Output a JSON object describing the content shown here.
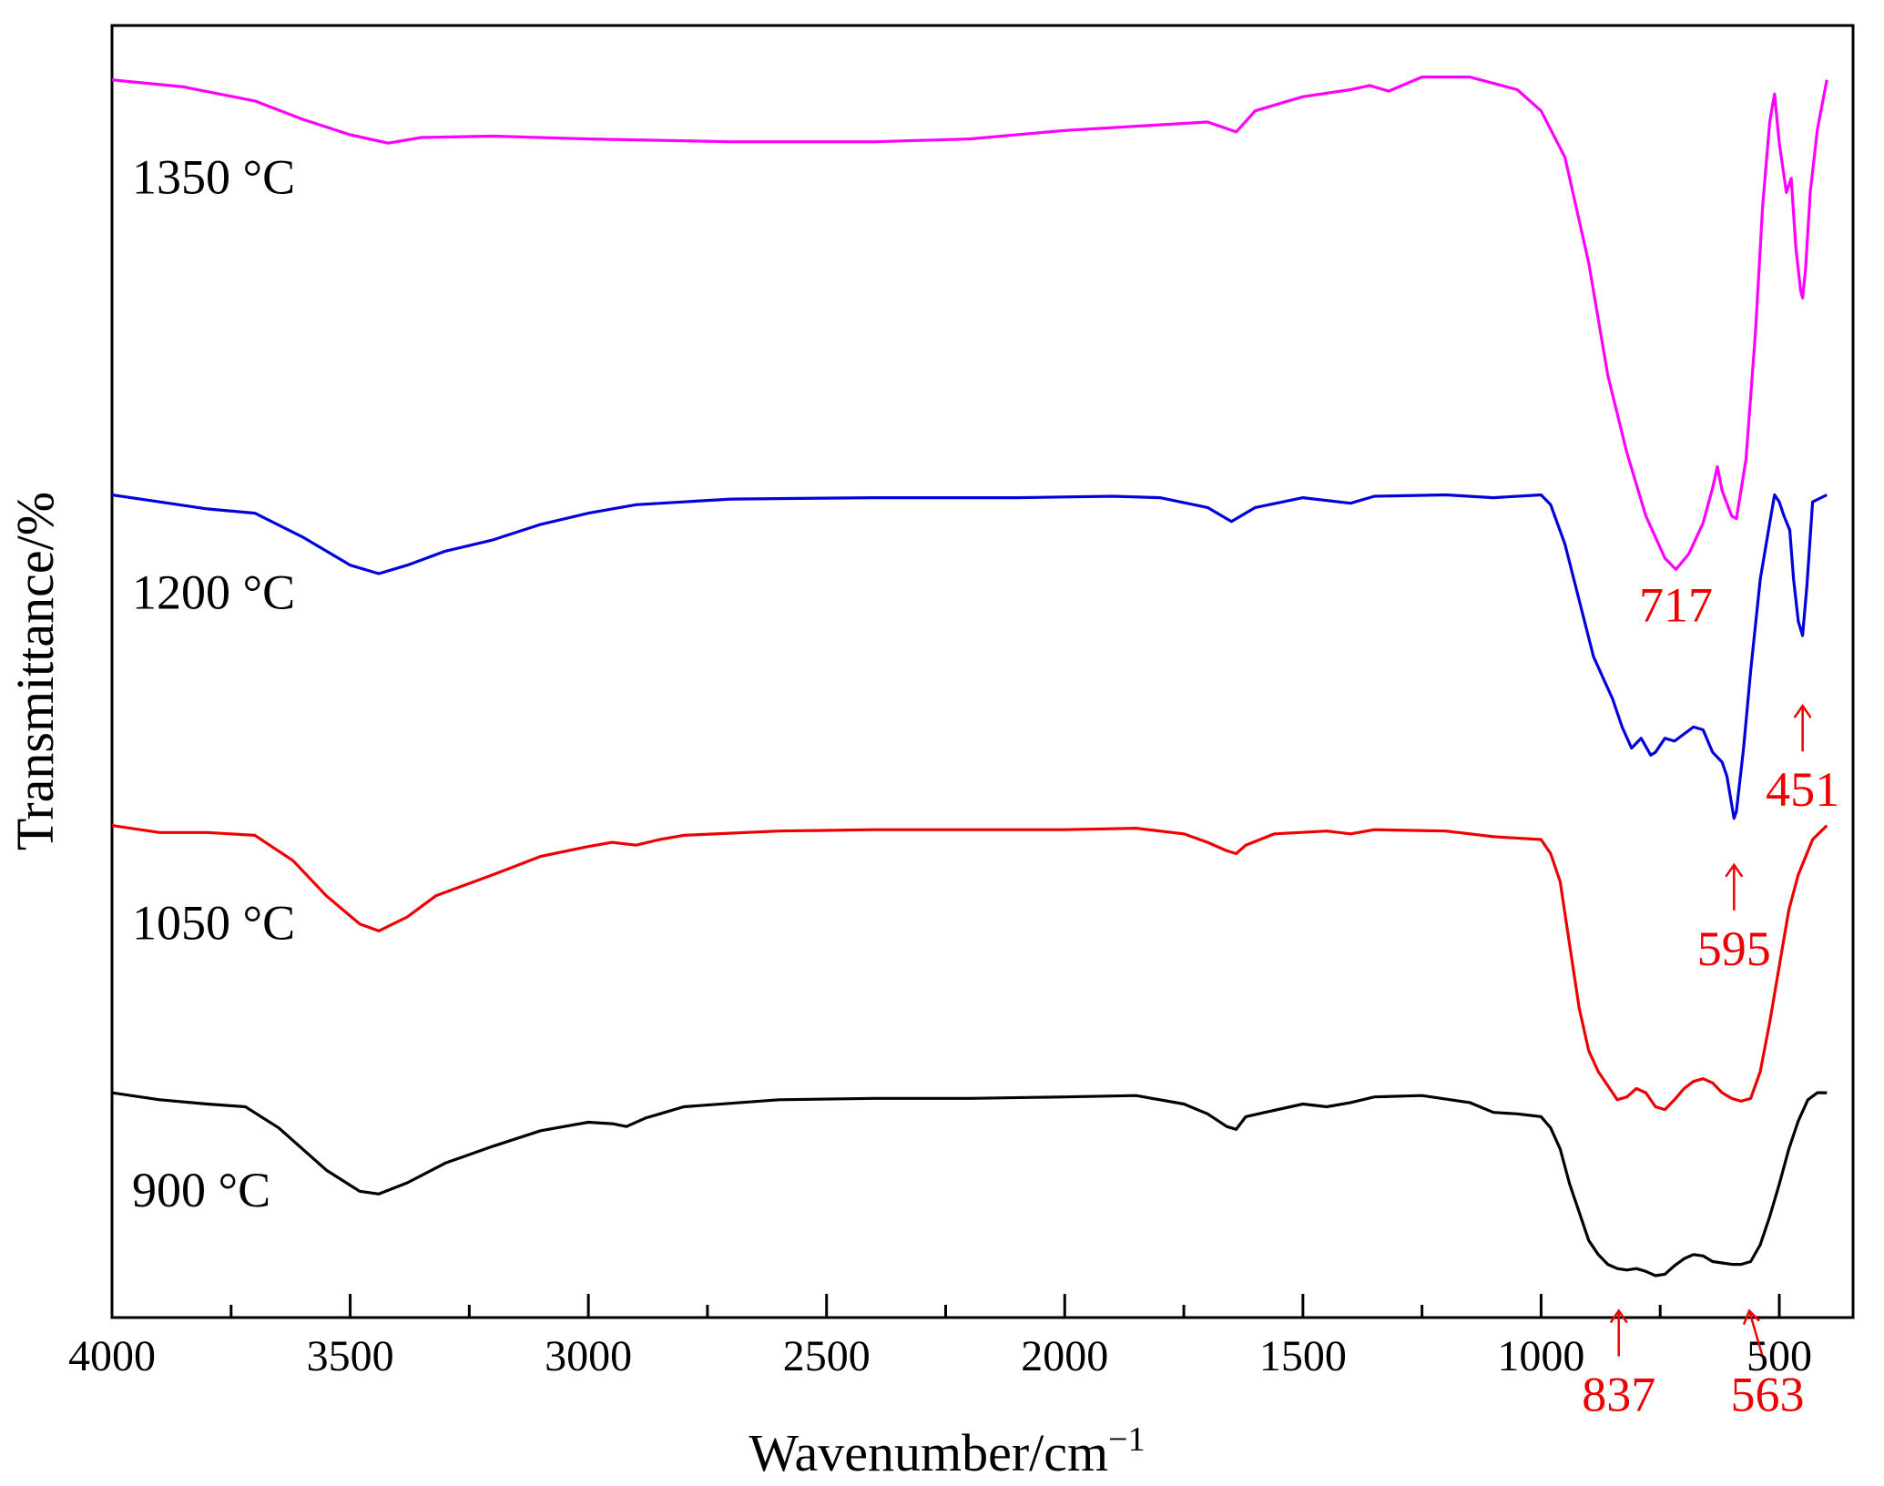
{
  "chart_data": {
    "type": "line",
    "title": "",
    "xlabel": "Wavenumber/cm",
    "xlabel_superscript": "−1",
    "ylabel": "Transmittance/%",
    "xlim": [
      4000,
      200
    ],
    "x_ticks": [
      4000,
      3500,
      3000,
      2500,
      2000,
      1500,
      1000,
      500
    ],
    "x_tick_labels": [
      "4000",
      "3500",
      "3000",
      "2500",
      "2000",
      "1500",
      "1000",
      "500"
    ],
    "y_ticks_shown": false,
    "grid": false,
    "series": [
      {
        "name": "1350 °C",
        "label": "1350 °C",
        "color": "#ff00ff",
        "points": [
          [
            4000,
            94.0
          ],
          [
            3850,
            93.5
          ],
          [
            3700,
            92.5
          ],
          [
            3600,
            91.2
          ],
          [
            3500,
            90.1
          ],
          [
            3420,
            89.5
          ],
          [
            3350,
            89.9
          ],
          [
            3200,
            90.0
          ],
          [
            3000,
            89.8
          ],
          [
            2700,
            89.6
          ],
          [
            2400,
            89.6
          ],
          [
            2200,
            89.8
          ],
          [
            2000,
            90.4
          ],
          [
            1800,
            90.8
          ],
          [
            1700,
            91.0
          ],
          [
            1640,
            90.3
          ],
          [
            1600,
            91.8
          ],
          [
            1500,
            92.8
          ],
          [
            1400,
            93.3
          ],
          [
            1360,
            93.6
          ],
          [
            1320,
            93.2
          ],
          [
            1250,
            94.2
          ],
          [
            1150,
            94.2
          ],
          [
            1050,
            93.3
          ],
          [
            1000,
            91.8
          ],
          [
            950,
            88.5
          ],
          [
            900,
            81.0
          ],
          [
            860,
            73.0
          ],
          [
            820,
            67.5
          ],
          [
            780,
            63.0
          ],
          [
            740,
            60.0
          ],
          [
            717,
            59.2
          ],
          [
            690,
            60.3
          ],
          [
            660,
            62.5
          ],
          [
            640,
            65.0
          ],
          [
            630,
            66.5
          ],
          [
            620,
            64.8
          ],
          [
            600,
            63.0
          ],
          [
            590,
            62.8
          ],
          [
            570,
            67.0
          ],
          [
            550,
            76.0
          ],
          [
            535,
            85.0
          ],
          [
            520,
            91.0
          ],
          [
            510,
            93.0
          ],
          [
            500,
            89.5
          ],
          [
            485,
            86.0
          ],
          [
            475,
            87.0
          ],
          [
            465,
            82.0
          ],
          [
            455,
            79.0
          ],
          [
            451,
            78.5
          ],
          [
            445,
            80.5
          ],
          [
            435,
            86.0
          ],
          [
            420,
            90.5
          ],
          [
            400,
            94.0
          ]
        ]
      },
      {
        "name": "1200 °C",
        "label": "1200 °C",
        "color": "#0000dd",
        "points": [
          [
            4000,
            64.5
          ],
          [
            3900,
            64.0
          ],
          [
            3800,
            63.5
          ],
          [
            3700,
            63.2
          ],
          [
            3600,
            61.5
          ],
          [
            3500,
            59.5
          ],
          [
            3440,
            58.9
          ],
          [
            3380,
            59.5
          ],
          [
            3300,
            60.5
          ],
          [
            3200,
            61.3
          ],
          [
            3100,
            62.4
          ],
          [
            3000,
            63.2
          ],
          [
            2900,
            63.8
          ],
          [
            2800,
            64.0
          ],
          [
            2700,
            64.2
          ],
          [
            2400,
            64.3
          ],
          [
            2100,
            64.3
          ],
          [
            1900,
            64.4
          ],
          [
            1800,
            64.3
          ],
          [
            1700,
            63.6
          ],
          [
            1650,
            62.6
          ],
          [
            1600,
            63.6
          ],
          [
            1500,
            64.3
          ],
          [
            1400,
            63.9
          ],
          [
            1350,
            64.4
          ],
          [
            1200,
            64.5
          ],
          [
            1100,
            64.3
          ],
          [
            1000,
            64.5
          ],
          [
            980,
            63.8
          ],
          [
            950,
            61.0
          ],
          [
            920,
            57.0
          ],
          [
            890,
            53.0
          ],
          [
            870,
            51.5
          ],
          [
            850,
            50.0
          ],
          [
            830,
            48.0
          ],
          [
            810,
            46.5
          ],
          [
            790,
            47.2
          ],
          [
            770,
            46.0
          ],
          [
            760,
            46.2
          ],
          [
            740,
            47.2
          ],
          [
            720,
            47.0
          ],
          [
            700,
            47.5
          ],
          [
            680,
            48.0
          ],
          [
            660,
            47.8
          ],
          [
            640,
            46.2
          ],
          [
            620,
            45.5
          ],
          [
            610,
            44.5
          ],
          [
            600,
            42.5
          ],
          [
            595,
            41.5
          ],
          [
            590,
            42.0
          ],
          [
            575,
            46.5
          ],
          [
            560,
            52.0
          ],
          [
            540,
            58.5
          ],
          [
            520,
            62.5
          ],
          [
            510,
            64.5
          ],
          [
            500,
            64.0
          ],
          [
            490,
            63.0
          ],
          [
            478,
            62.0
          ],
          [
            470,
            58.5
          ],
          [
            460,
            55.5
          ],
          [
            451,
            54.5
          ],
          [
            442,
            58.0
          ],
          [
            430,
            64.0
          ],
          [
            400,
            64.5
          ]
        ]
      },
      {
        "name": "1050 °C",
        "label": "1050 °C",
        "color": "#ee0000",
        "points": [
          [
            4000,
            41.0
          ],
          [
            3900,
            40.5
          ],
          [
            3800,
            40.5
          ],
          [
            3700,
            40.3
          ],
          [
            3620,
            38.5
          ],
          [
            3550,
            36.0
          ],
          [
            3480,
            34.0
          ],
          [
            3440,
            33.5
          ],
          [
            3380,
            34.5
          ],
          [
            3320,
            36.0
          ],
          [
            3200,
            37.5
          ],
          [
            3100,
            38.8
          ],
          [
            3000,
            39.5
          ],
          [
            2950,
            39.8
          ],
          [
            2900,
            39.6
          ],
          [
            2850,
            40.0
          ],
          [
            2800,
            40.3
          ],
          [
            2600,
            40.6
          ],
          [
            2400,
            40.7
          ],
          [
            2200,
            40.7
          ],
          [
            2000,
            40.7
          ],
          [
            1850,
            40.8
          ],
          [
            1750,
            40.4
          ],
          [
            1700,
            39.8
          ],
          [
            1660,
            39.2
          ],
          [
            1640,
            39.0
          ],
          [
            1620,
            39.6
          ],
          [
            1560,
            40.4
          ],
          [
            1450,
            40.6
          ],
          [
            1400,
            40.4
          ],
          [
            1350,
            40.7
          ],
          [
            1200,
            40.6
          ],
          [
            1100,
            40.2
          ],
          [
            1000,
            40.0
          ],
          [
            980,
            39.0
          ],
          [
            960,
            37.0
          ],
          [
            940,
            32.5
          ],
          [
            920,
            28.0
          ],
          [
            900,
            25.0
          ],
          [
            880,
            23.5
          ],
          [
            860,
            22.5
          ],
          [
            840,
            21.5
          ],
          [
            820,
            21.7
          ],
          [
            800,
            22.3
          ],
          [
            780,
            22.0
          ],
          [
            760,
            21.0
          ],
          [
            740,
            20.8
          ],
          [
            720,
            21.5
          ],
          [
            700,
            22.3
          ],
          [
            680,
            22.8
          ],
          [
            660,
            23.0
          ],
          [
            640,
            22.7
          ],
          [
            620,
            22.0
          ],
          [
            600,
            21.6
          ],
          [
            580,
            21.4
          ],
          [
            560,
            21.6
          ],
          [
            540,
            23.5
          ],
          [
            520,
            27.0
          ],
          [
            500,
            31.0
          ],
          [
            480,
            35.0
          ],
          [
            460,
            37.5
          ],
          [
            430,
            40.0
          ],
          [
            400,
            41.0
          ]
        ]
      },
      {
        "name": "900 °C",
        "label": "900 °C",
        "color": "#000000",
        "points": [
          [
            4000,
            22.0
          ],
          [
            3900,
            21.5
          ],
          [
            3800,
            21.2
          ],
          [
            3720,
            21.0
          ],
          [
            3650,
            19.5
          ],
          [
            3550,
            16.5
          ],
          [
            3480,
            15.0
          ],
          [
            3440,
            14.8
          ],
          [
            3380,
            15.6
          ],
          [
            3300,
            17.0
          ],
          [
            3200,
            18.2
          ],
          [
            3100,
            19.3
          ],
          [
            3000,
            19.9
          ],
          [
            2950,
            19.8
          ],
          [
            2920,
            19.6
          ],
          [
            2880,
            20.2
          ],
          [
            2850,
            20.5
          ],
          [
            2800,
            21.0
          ],
          [
            2600,
            21.5
          ],
          [
            2400,
            21.6
          ],
          [
            2200,
            21.6
          ],
          [
            2000,
            21.7
          ],
          [
            1850,
            21.8
          ],
          [
            1750,
            21.2
          ],
          [
            1700,
            20.5
          ],
          [
            1660,
            19.6
          ],
          [
            1640,
            19.4
          ],
          [
            1620,
            20.3
          ],
          [
            1580,
            20.6
          ],
          [
            1500,
            21.2
          ],
          [
            1450,
            21.0
          ],
          [
            1400,
            21.3
          ],
          [
            1350,
            21.7
          ],
          [
            1250,
            21.8
          ],
          [
            1150,
            21.3
          ],
          [
            1100,
            20.6
          ],
          [
            1050,
            20.5
          ],
          [
            1000,
            20.3
          ],
          [
            980,
            19.5
          ],
          [
            960,
            18.0
          ],
          [
            940,
            15.5
          ],
          [
            920,
            13.5
          ],
          [
            900,
            11.5
          ],
          [
            880,
            10.5
          ],
          [
            860,
            9.8
          ],
          [
            840,
            9.5
          ],
          [
            820,
            9.4
          ],
          [
            800,
            9.5
          ],
          [
            780,
            9.3
          ],
          [
            760,
            9.0
          ],
          [
            740,
            9.1
          ],
          [
            720,
            9.7
          ],
          [
            700,
            10.2
          ],
          [
            680,
            10.5
          ],
          [
            660,
            10.4
          ],
          [
            640,
            10.0
          ],
          [
            620,
            9.9
          ],
          [
            600,
            9.8
          ],
          [
            580,
            9.8
          ],
          [
            560,
            10.0
          ],
          [
            540,
            11.2
          ],
          [
            520,
            13.2
          ],
          [
            500,
            15.5
          ],
          [
            480,
            18.0
          ],
          [
            460,
            20.0
          ],
          [
            440,
            21.5
          ],
          [
            420,
            22.0
          ],
          [
            400,
            22.0
          ]
        ]
      }
    ],
    "annotations": [
      {
        "text": "717",
        "x": 717,
        "y": 55.5,
        "arrow": false
      },
      {
        "text": "451",
        "x": 451,
        "y": 49.5,
        "arrow": "up",
        "label_below": true
      },
      {
        "text": "595",
        "x": 595,
        "y": 38.2,
        "arrow": "up",
        "label_below": true
      },
      {
        "text": "837",
        "x": 837,
        "y": 6.5,
        "arrow": "up",
        "label_below": true
      },
      {
        "text": "563",
        "x": 563,
        "y": 6.5,
        "arrow": "up-left",
        "label_below": true
      }
    ],
    "annotation_color": "#ee0000"
  }
}
